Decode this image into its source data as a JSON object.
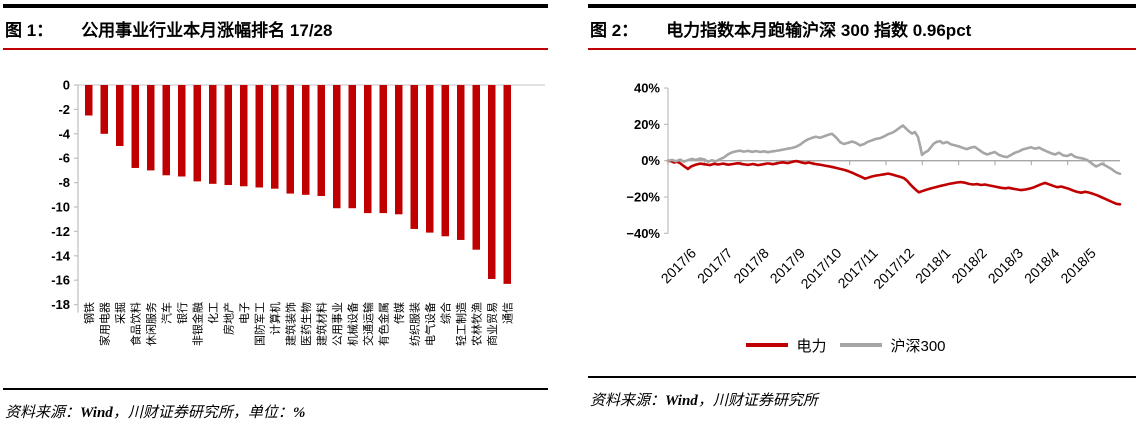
{
  "colors": {
    "accent_red": "#C00000",
    "series_gray": "#A6A6A6",
    "axis_gray": "#BFBFBF",
    "zero_line_gray": "#D9D9D9",
    "rule_black": "#000000"
  },
  "figure1": {
    "label": "图 1：",
    "title": "公用事业行业本月涨幅排名 17/28",
    "source": {
      "prefix": "资料来源：",
      "wind": "Wind",
      "middle": "，川财证券研究所，单位：",
      "unit": "%"
    }
  },
  "figure2": {
    "label": "图 2：",
    "title": "电力指数本月跑输沪深 300 指数 0.96pct",
    "source": {
      "prefix": "资料来源：",
      "wind": "Wind",
      "middle": "，川财证券研究所"
    }
  },
  "chart_data": [
    {
      "type": "bar",
      "title": "公用事业行业本月涨幅排名 17/28",
      "unit": "%",
      "bar_color": "#C00000",
      "ylim": [
        -18,
        0
      ],
      "ytick_values": [
        0,
        -2,
        -4,
        -6,
        -8,
        -10,
        -12,
        -14,
        -16,
        -18
      ],
      "ytick_labels": [
        "0",
        "-2",
        "-4",
        "-6",
        "-8",
        "-10",
        "-12",
        "-14",
        "-16",
        "-18"
      ],
      "grid": "zero-line-only",
      "categories": [
        "钢铁",
        "家用电器",
        "采掘",
        "食品饮料",
        "休闲服务",
        "汽车",
        "银行",
        "非银金融",
        "化工",
        "房地产",
        "电子",
        "国防军工",
        "计算机",
        "建筑装饰",
        "医药生物",
        "建筑材料",
        "公用事业",
        "机械设备",
        "交通运输",
        "有色金属",
        "传媒",
        "纺织服装",
        "电气设备",
        "综合",
        "轻工制造",
        "农林牧渔",
        "商业贸易",
        "通信"
      ],
      "values": [
        -2.5,
        -4.0,
        -5.0,
        -6.8,
        -7.0,
        -7.4,
        -7.5,
        -7.9,
        -8.1,
        -8.2,
        -8.3,
        -8.4,
        -8.5,
        -8.9,
        -9.0,
        -9.1,
        -10.1,
        -10.1,
        -10.5,
        -10.5,
        -10.6,
        -11.8,
        -12.1,
        -12.4,
        -12.7,
        -13.5,
        -15.9,
        -16.3
      ]
    },
    {
      "type": "line",
      "title": "电力指数本月跑输沪深 300 指数 0.96pct",
      "ylim": [
        -40,
        40
      ],
      "ytick_values": [
        40,
        20,
        0,
        -20,
        -40
      ],
      "ytick_labels": [
        "40%",
        "20%",
        "0%",
        "−20%",
        "−40%"
      ],
      "x_labels": [
        "2017/6",
        "2017/7",
        "2017/8",
        "2017/9",
        "2017/10",
        "2017/11",
        "2017/12",
        "2018/1",
        "2018/2",
        "2018/3",
        "2018/4",
        "2018/5"
      ],
      "legend_position": "bottom",
      "series": [
        {
          "name": "电力",
          "color": "#C00000",
          "points": [
            [
              0,
              0
            ],
            [
              0.007,
              -0.3
            ],
            [
              0.013,
              -1.0
            ],
            [
              0.02,
              -0.6
            ],
            [
              0.027,
              -1.4
            ],
            [
              0.035,
              -3.0
            ],
            [
              0.044,
              -4.5
            ],
            [
              0.051,
              -3.2
            ],
            [
              0.06,
              -2.3
            ],
            [
              0.071,
              -1.6
            ],
            [
              0.082,
              -2.0
            ],
            [
              0.093,
              -2.4
            ],
            [
              0.102,
              -1.7
            ],
            [
              0.111,
              -2.1
            ],
            [
              0.122,
              -1.6
            ],
            [
              0.133,
              -2.2
            ],
            [
              0.144,
              -1.8
            ],
            [
              0.155,
              -1.4
            ],
            [
              0.166,
              -1.9
            ],
            [
              0.177,
              -2.3
            ],
            [
              0.188,
              -1.8
            ],
            [
              0.199,
              -2.4
            ],
            [
              0.21,
              -2.0
            ],
            [
              0.221,
              -1.5
            ],
            [
              0.232,
              -1.9
            ],
            [
              0.243,
              -1.3
            ],
            [
              0.254,
              -0.9
            ],
            [
              0.265,
              -1.3
            ],
            [
              0.277,
              -0.5
            ],
            [
              0.285,
              -0.2
            ],
            [
              0.294,
              -0.9
            ],
            [
              0.303,
              -1.4
            ],
            [
              0.312,
              -1.0
            ],
            [
              0.321,
              -1.6
            ],
            [
              0.33,
              -2.0
            ],
            [
              0.339,
              -2.3
            ],
            [
              0.347,
              -2.7
            ],
            [
              0.356,
              -3.1
            ],
            [
              0.365,
              -3.6
            ],
            [
              0.374,
              -4.1
            ],
            [
              0.383,
              -4.6
            ],
            [
              0.392,
              -5.2
            ],
            [
              0.4,
              -5.9
            ],
            [
              0.409,
              -6.8
            ],
            [
              0.418,
              -7.8
            ],
            [
              0.427,
              -8.8
            ],
            [
              0.436,
              -9.9
            ],
            [
              0.442,
              -9.4
            ],
            [
              0.451,
              -8.7
            ],
            [
              0.46,
              -8.2
            ],
            [
              0.469,
              -7.9
            ],
            [
              0.478,
              -7.5
            ],
            [
              0.487,
              -7.1
            ],
            [
              0.496,
              -7.6
            ],
            [
              0.504,
              -8.2
            ],
            [
              0.513,
              -8.8
            ],
            [
              0.522,
              -9.6
            ],
            [
              0.529,
              -11.0
            ],
            [
              0.535,
              -12.8
            ],
            [
              0.542,
              -14.6
            ],
            [
              0.549,
              -16.2
            ],
            [
              0.555,
              -17.4
            ],
            [
              0.562,
              -16.8
            ],
            [
              0.569,
              -16.2
            ],
            [
              0.577,
              -15.6
            ],
            [
              0.586,
              -15.0
            ],
            [
              0.595,
              -14.4
            ],
            [
              0.604,
              -13.8
            ],
            [
              0.613,
              -13.3
            ],
            [
              0.622,
              -12.8
            ],
            [
              0.631,
              -12.4
            ],
            [
              0.639,
              -12.0
            ],
            [
              0.648,
              -11.8
            ],
            [
              0.657,
              -12.1
            ],
            [
              0.666,
              -12.8
            ],
            [
              0.675,
              -13.1
            ],
            [
              0.684,
              -12.9
            ],
            [
              0.693,
              -13.4
            ],
            [
              0.701,
              -13.1
            ],
            [
              0.71,
              -13.6
            ],
            [
              0.719,
              -14.0
            ],
            [
              0.728,
              -14.5
            ],
            [
              0.737,
              -14.9
            ],
            [
              0.746,
              -15.2
            ],
            [
              0.754,
              -14.9
            ],
            [
              0.763,
              -15.4
            ],
            [
              0.772,
              -15.8
            ],
            [
              0.781,
              -16.2
            ],
            [
              0.79,
              -15.9
            ],
            [
              0.799,
              -15.4
            ],
            [
              0.808,
              -14.8
            ],
            [
              0.816,
              -14.0
            ],
            [
              0.825,
              -13.0
            ],
            [
              0.834,
              -12.2
            ],
            [
              0.843,
              -13.0
            ],
            [
              0.852,
              -13.8
            ],
            [
              0.861,
              -14.6
            ],
            [
              0.87,
              -14.2
            ],
            [
              0.878,
              -14.8
            ],
            [
              0.887,
              -15.5
            ],
            [
              0.896,
              -16.4
            ],
            [
              0.905,
              -17.2
            ],
            [
              0.914,
              -17.6
            ],
            [
              0.923,
              -17.1
            ],
            [
              0.931,
              -17.5
            ],
            [
              0.94,
              -18.2
            ],
            [
              0.949,
              -19.0
            ],
            [
              0.958,
              -20.0
            ],
            [
              0.967,
              -21.0
            ],
            [
              0.976,
              -22.0
            ],
            [
              0.985,
              -23.0
            ],
            [
              0.993,
              -23.8
            ],
            [
              1,
              -24.0
            ]
          ]
        },
        {
          "name": "沪深300",
          "color": "#A6A6A6",
          "points": [
            [
              0,
              0
            ],
            [
              0.009,
              0.4
            ],
            [
              0.018,
              -0.3
            ],
            [
              0.027,
              0.6
            ],
            [
              0.035,
              -0.5
            ],
            [
              0.044,
              0.3
            ],
            [
              0.053,
              1.0
            ],
            [
              0.062,
              0.4
            ],
            [
              0.071,
              1.2
            ],
            [
              0.08,
              0.7
            ],
            [
              0.088,
              -0.5
            ],
            [
              0.097,
              0.2
            ],
            [
              0.106,
              -0.4
            ],
            [
              0.115,
              0.8
            ],
            [
              0.124,
              1.8
            ],
            [
              0.133,
              3.5
            ],
            [
              0.142,
              4.6
            ],
            [
              0.15,
              5.1
            ],
            [
              0.159,
              5.5
            ],
            [
              0.168,
              5.0
            ],
            [
              0.177,
              5.4
            ],
            [
              0.186,
              4.9
            ],
            [
              0.195,
              5.3
            ],
            [
              0.204,
              4.8
            ],
            [
              0.212,
              5.2
            ],
            [
              0.221,
              4.7
            ],
            [
              0.23,
              5.1
            ],
            [
              0.239,
              5.4
            ],
            [
              0.248,
              5.8
            ],
            [
              0.257,
              6.2
            ],
            [
              0.265,
              6.6
            ],
            [
              0.274,
              7.0
            ],
            [
              0.283,
              7.6
            ],
            [
              0.292,
              8.8
            ],
            [
              0.301,
              10.5
            ],
            [
              0.31,
              11.8
            ],
            [
              0.319,
              12.6
            ],
            [
              0.327,
              13.2
            ],
            [
              0.336,
              12.6
            ],
            [
              0.345,
              13.4
            ],
            [
              0.354,
              14.2
            ],
            [
              0.363,
              14.8
            ],
            [
              0.372,
              12.8
            ],
            [
              0.381,
              10.2
            ],
            [
              0.389,
              9.2
            ],
            [
              0.398,
              9.8
            ],
            [
              0.407,
              10.6
            ],
            [
              0.416,
              9.8
            ],
            [
              0.425,
              8.4
            ],
            [
              0.434,
              9.2
            ],
            [
              0.442,
              10.4
            ],
            [
              0.451,
              11.2
            ],
            [
              0.46,
              12.0
            ],
            [
              0.469,
              12.4
            ],
            [
              0.478,
              13.4
            ],
            [
              0.487,
              14.6
            ],
            [
              0.496,
              15.4
            ],
            [
              0.504,
              16.6
            ],
            [
              0.513,
              18.2
            ],
            [
              0.52,
              19.4
            ],
            [
              0.527,
              17.6
            ],
            [
              0.533,
              16.2
            ],
            [
              0.54,
              14.9
            ],
            [
              0.546,
              15.8
            ],
            [
              0.553,
              13.0
            ],
            [
              0.558,
              8.0
            ],
            [
              0.562,
              3.2
            ],
            [
              0.569,
              4.6
            ],
            [
              0.575,
              5.4
            ],
            [
              0.582,
              7.6
            ],
            [
              0.588,
              9.4
            ],
            [
              0.595,
              10.4
            ],
            [
              0.602,
              10.8
            ],
            [
              0.608,
              9.6
            ],
            [
              0.617,
              10.3
            ],
            [
              0.626,
              9.0
            ],
            [
              0.635,
              8.4
            ],
            [
              0.644,
              7.8
            ],
            [
              0.653,
              7.0
            ],
            [
              0.661,
              6.4
            ],
            [
              0.67,
              7.2
            ],
            [
              0.679,
              7.6
            ],
            [
              0.688,
              6.0
            ],
            [
              0.697,
              4.4
            ],
            [
              0.706,
              3.4
            ],
            [
              0.715,
              4.2
            ],
            [
              0.723,
              4.8
            ],
            [
              0.732,
              3.2
            ],
            [
              0.741,
              2.4
            ],
            [
              0.75,
              2.0
            ],
            [
              0.759,
              3.2
            ],
            [
              0.768,
              4.4
            ],
            [
              0.777,
              5.2
            ],
            [
              0.785,
              6.2
            ],
            [
              0.794,
              6.8
            ],
            [
              0.803,
              7.4
            ],
            [
              0.812,
              6.6
            ],
            [
              0.821,
              7.2
            ],
            [
              0.83,
              6.0
            ],
            [
              0.839,
              5.0
            ],
            [
              0.847,
              4.2
            ],
            [
              0.856,
              3.4
            ],
            [
              0.865,
              4.4
            ],
            [
              0.874,
              3.0
            ],
            [
              0.883,
              2.6
            ],
            [
              0.892,
              3.6
            ],
            [
              0.9,
              2.2
            ],
            [
              0.909,
              1.6
            ],
            [
              0.918,
              1.2
            ],
            [
              0.927,
              0.4
            ],
            [
              0.934,
              -0.8
            ],
            [
              0.94,
              -2.0
            ],
            [
              0.947,
              -3.2
            ],
            [
              0.954,
              -2.4
            ],
            [
              0.96,
              -1.6
            ],
            [
              0.967,
              -2.6
            ],
            [
              0.973,
              -3.4
            ],
            [
              0.98,
              -4.4
            ],
            [
              0.987,
              -5.6
            ],
            [
              0.993,
              -6.6
            ],
            [
              1,
              -7.2
            ]
          ]
        }
      ]
    }
  ]
}
